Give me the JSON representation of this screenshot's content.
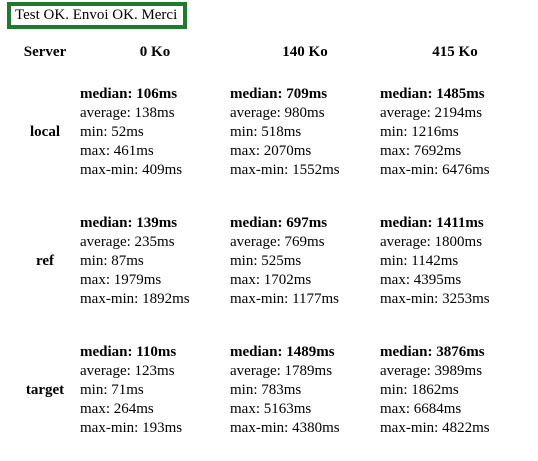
{
  "status": {
    "text": "Test OK. Envoi OK. Merci",
    "border_color": "#1e7b2e"
  },
  "table": {
    "headers": [
      "Server",
      "0 Ko",
      "140 Ko",
      "415 Ko"
    ],
    "rows": [
      {
        "server": "local",
        "cells": [
          {
            "median": "median: 106ms",
            "average": "average: 138ms",
            "min": "min: 52ms",
            "max": "max: 461ms",
            "maxmin": "max-min: 409ms"
          },
          {
            "median": "median: 709ms",
            "average": "average: 980ms",
            "min": "min: 518ms",
            "max": "max: 2070ms",
            "maxmin": "max-min: 1552ms"
          },
          {
            "median": "median: 1485ms",
            "average": "average: 2194ms",
            "min": "min: 1216ms",
            "max": "max: 7692ms",
            "maxmin": "max-min: 6476ms"
          }
        ]
      },
      {
        "server": "ref",
        "cells": [
          {
            "median": "median: 139ms",
            "average": "average: 235ms",
            "min": "min: 87ms",
            "max": "max: 1979ms",
            "maxmin": "max-min: 1892ms"
          },
          {
            "median": "median: 697ms",
            "average": "average: 769ms",
            "min": "min: 525ms",
            "max": "max: 1702ms",
            "maxmin": "max-min: 1177ms"
          },
          {
            "median": "median: 1411ms",
            "average": "average: 1800ms",
            "min": "min: 1142ms",
            "max": "max: 4395ms",
            "maxmin": "max-min: 3253ms"
          }
        ]
      },
      {
        "server": "target",
        "cells": [
          {
            "median": "median: 110ms",
            "average": "average: 123ms",
            "min": "min: 71ms",
            "max": "max: 264ms",
            "maxmin": "max-min: 193ms"
          },
          {
            "median": "median: 1489ms",
            "average": "average: 1789ms",
            "min": "min: 783ms",
            "max": "max: 5163ms",
            "maxmin": "max-min: 4380ms"
          },
          {
            "median": "median: 3876ms",
            "average": "average: 3989ms",
            "min": "min: 1862ms",
            "max": "max: 6684ms",
            "maxmin": "max-min: 4822ms"
          }
        ]
      }
    ]
  }
}
